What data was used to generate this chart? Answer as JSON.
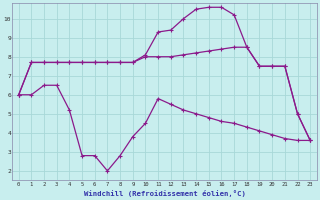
{
  "xlabel": "Windchill (Refroidissement éolien,°C)",
  "bg_color": "#c8eeee",
  "line_color": "#8b1a8b",
  "grid_color": "#a8d8d8",
  "xlim": [
    -0.5,
    23.5
  ],
  "ylim": [
    1.5,
    10.8
  ],
  "xticks": [
    0,
    1,
    2,
    3,
    4,
    5,
    6,
    7,
    8,
    9,
    10,
    11,
    12,
    13,
    14,
    15,
    16,
    17,
    18,
    19,
    20,
    21,
    22,
    23
  ],
  "yticks": [
    2,
    3,
    4,
    5,
    6,
    7,
    8,
    9,
    10
  ],
  "line1_x": [
    0,
    1,
    2,
    3,
    4,
    5,
    6,
    7,
    8,
    9,
    10,
    11,
    12,
    13,
    14,
    15,
    16,
    17,
    18,
    19,
    20,
    21,
    22,
    23
  ],
  "line1_y": [
    6.0,
    6.0,
    6.5,
    6.5,
    5.2,
    2.8,
    2.8,
    2.0,
    2.8,
    3.8,
    4.5,
    5.8,
    5.5,
    5.2,
    5.0,
    4.8,
    4.6,
    4.5,
    4.3,
    4.1,
    3.9,
    3.7,
    3.6,
    3.6
  ],
  "line2_x": [
    0,
    1,
    2,
    3,
    4,
    5,
    6,
    7,
    8,
    9,
    10,
    11,
    12,
    13,
    14,
    15,
    16,
    17,
    18,
    19,
    20,
    21,
    22,
    23
  ],
  "line2_y": [
    6.0,
    7.7,
    7.7,
    7.7,
    7.7,
    7.7,
    7.7,
    7.7,
    7.7,
    7.7,
    8.1,
    9.3,
    9.4,
    10.0,
    10.5,
    10.6,
    10.6,
    10.2,
    8.5,
    7.5,
    7.5,
    7.5,
    5.0,
    3.6
  ],
  "line3_x": [
    0,
    1,
    2,
    3,
    4,
    5,
    6,
    7,
    8,
    9,
    10,
    11,
    12,
    13,
    14,
    15,
    16,
    17,
    18,
    19,
    20,
    21,
    22,
    23
  ],
  "line3_y": [
    6.0,
    7.7,
    7.7,
    7.7,
    7.7,
    7.7,
    7.7,
    7.7,
    7.7,
    7.7,
    8.0,
    8.0,
    8.0,
    8.1,
    8.2,
    8.3,
    8.4,
    8.5,
    8.5,
    7.5,
    7.5,
    7.5,
    5.0,
    3.6
  ]
}
